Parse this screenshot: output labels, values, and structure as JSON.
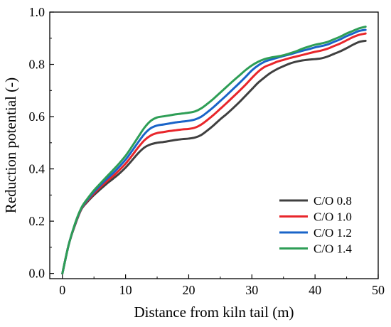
{
  "chart_data": {
    "type": "line",
    "xlabel": "Distance from kiln tail (m)",
    "ylabel": "Reduction potential (-)",
    "xlim": [
      -2,
      50
    ],
    "ylim": [
      -0.02,
      1.0
    ],
    "xticks": [
      0,
      10,
      20,
      30,
      40,
      50
    ],
    "xtick_labels": [
      "0",
      "10",
      "20",
      "30",
      "40",
      "50"
    ],
    "yticks": [
      0.0,
      0.2,
      0.4,
      0.6,
      0.8,
      1.0
    ],
    "ytick_labels": [
      "0.0",
      "0.2",
      "0.4",
      "0.6",
      "0.8",
      "1.0"
    ],
    "grid": false,
    "legend_position": "bottom-right",
    "x": [
      0,
      1,
      2,
      3,
      4,
      5,
      6,
      7,
      8,
      9,
      10,
      11,
      12,
      13,
      14,
      15,
      16,
      17,
      18,
      19,
      20,
      21,
      22,
      23,
      24,
      25,
      26,
      27,
      28,
      29,
      30,
      31,
      32,
      33,
      34,
      35,
      36,
      37,
      38,
      39,
      40,
      41,
      42,
      43,
      44,
      45,
      46,
      47,
      48
    ],
    "series": [
      {
        "name": "C/O 0.8",
        "color": "#404040",
        "values": [
          0.0,
          0.11,
          0.185,
          0.245,
          0.275,
          0.3,
          0.322,
          0.343,
          0.362,
          0.382,
          0.405,
          0.432,
          0.46,
          0.482,
          0.494,
          0.5,
          0.503,
          0.507,
          0.511,
          0.514,
          0.516,
          0.52,
          0.53,
          0.548,
          0.568,
          0.59,
          0.61,
          0.632,
          0.655,
          0.68,
          0.705,
          0.73,
          0.75,
          0.768,
          0.782,
          0.793,
          0.803,
          0.81,
          0.815,
          0.818,
          0.82,
          0.823,
          0.83,
          0.84,
          0.85,
          0.862,
          0.875,
          0.886,
          0.89
        ]
      },
      {
        "name": "C/O 1.0",
        "color": "#e8262b",
        "values": [
          0.0,
          0.11,
          0.187,
          0.247,
          0.279,
          0.306,
          0.33,
          0.352,
          0.372,
          0.395,
          0.42,
          0.45,
          0.482,
          0.51,
          0.528,
          0.537,
          0.541,
          0.545,
          0.548,
          0.551,
          0.553,
          0.558,
          0.57,
          0.588,
          0.608,
          0.63,
          0.652,
          0.675,
          0.698,
          0.722,
          0.748,
          0.772,
          0.79,
          0.8,
          0.81,
          0.817,
          0.824,
          0.83,
          0.836,
          0.842,
          0.848,
          0.853,
          0.86,
          0.87,
          0.88,
          0.892,
          0.904,
          0.913,
          0.918
        ]
      },
      {
        "name": "C/O 1.2",
        "color": "#1a64c8",
        "values": [
          0.0,
          0.11,
          0.189,
          0.249,
          0.283,
          0.312,
          0.337,
          0.361,
          0.383,
          0.408,
          0.435,
          0.468,
          0.502,
          0.534,
          0.556,
          0.566,
          0.57,
          0.574,
          0.578,
          0.581,
          0.584,
          0.589,
          0.6,
          0.618,
          0.638,
          0.66,
          0.682,
          0.705,
          0.728,
          0.752,
          0.777,
          0.796,
          0.81,
          0.818,
          0.825,
          0.832,
          0.838,
          0.845,
          0.852,
          0.858,
          0.865,
          0.87,
          0.876,
          0.886,
          0.896,
          0.908,
          0.918,
          0.928,
          0.932
        ]
      },
      {
        "name": "C/O 1.4",
        "color": "#2e9e56",
        "values": [
          0.0,
          0.11,
          0.191,
          0.251,
          0.287,
          0.318,
          0.344,
          0.37,
          0.395,
          0.421,
          0.45,
          0.485,
          0.522,
          0.558,
          0.584,
          0.597,
          0.601,
          0.605,
          0.609,
          0.612,
          0.615,
          0.62,
          0.632,
          0.65,
          0.67,
          0.692,
          0.714,
          0.736,
          0.757,
          0.778,
          0.796,
          0.81,
          0.82,
          0.826,
          0.83,
          0.835,
          0.842,
          0.85,
          0.86,
          0.868,
          0.875,
          0.88,
          0.886,
          0.896,
          0.906,
          0.918,
          0.928,
          0.938,
          0.944
        ]
      }
    ]
  }
}
